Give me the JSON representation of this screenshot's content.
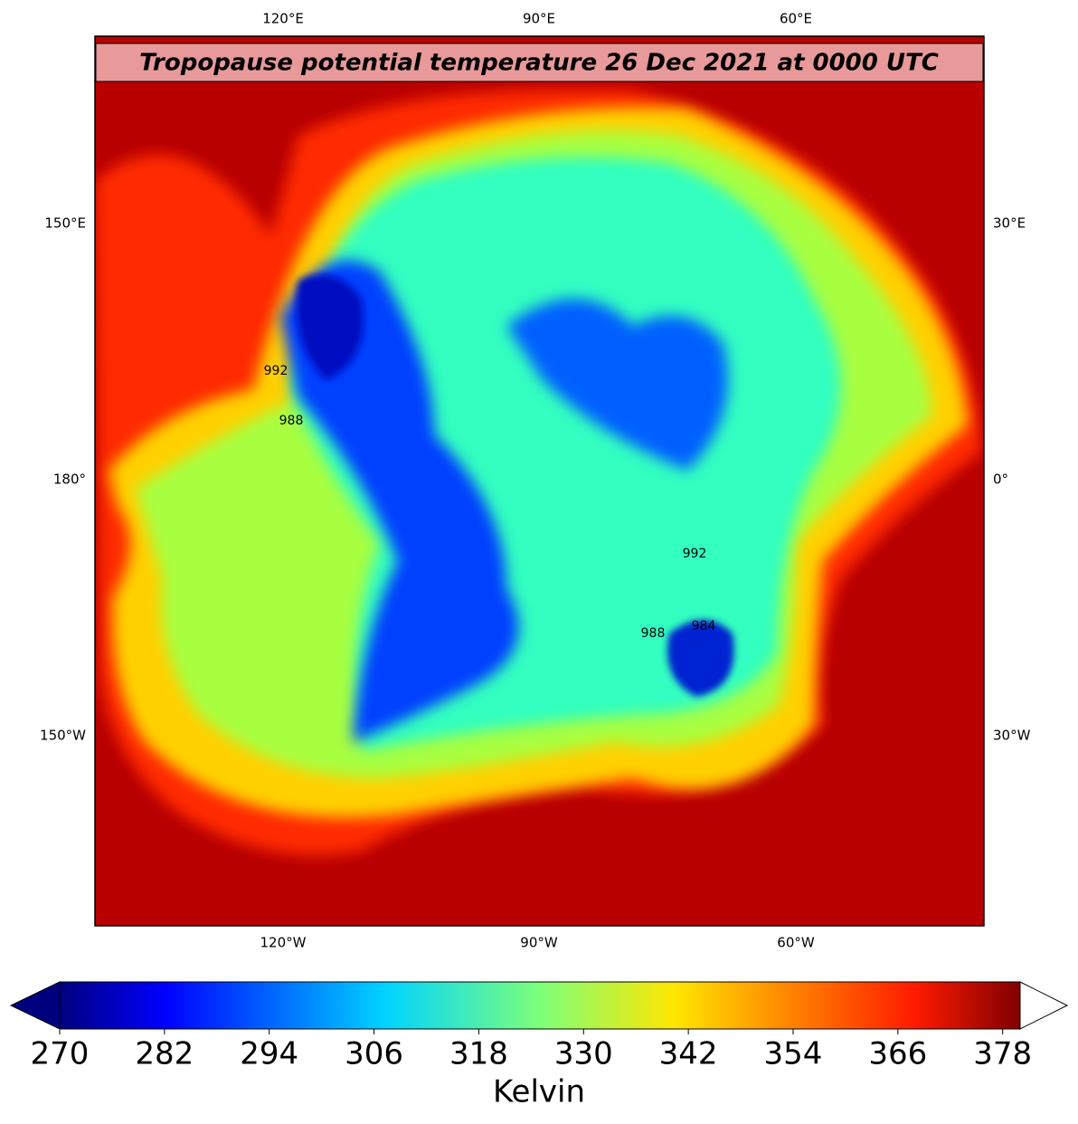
{
  "map": {
    "title": "Tropopause potential temperature 26 Dec 2021 at 0000 UTC",
    "top_labels": [
      "120°E",
      "90°E",
      "60°E"
    ],
    "bottom_labels": [
      "120°W",
      "90°W",
      "60°W"
    ],
    "left_labels": [
      "150°E",
      "180°",
      "150°W"
    ],
    "right_labels": [
      "30°E",
      "0°",
      "30°W"
    ],
    "contour_labels": [
      "992",
      "988",
      "992",
      "984",
      "988"
    ]
  },
  "colorbar": {
    "lim": [
      270,
      380
    ],
    "ticks": [
      270,
      282,
      294,
      306,
      318,
      330,
      342,
      354,
      366,
      378
    ],
    "label": "Kelvin",
    "extend": "both"
  }
}
